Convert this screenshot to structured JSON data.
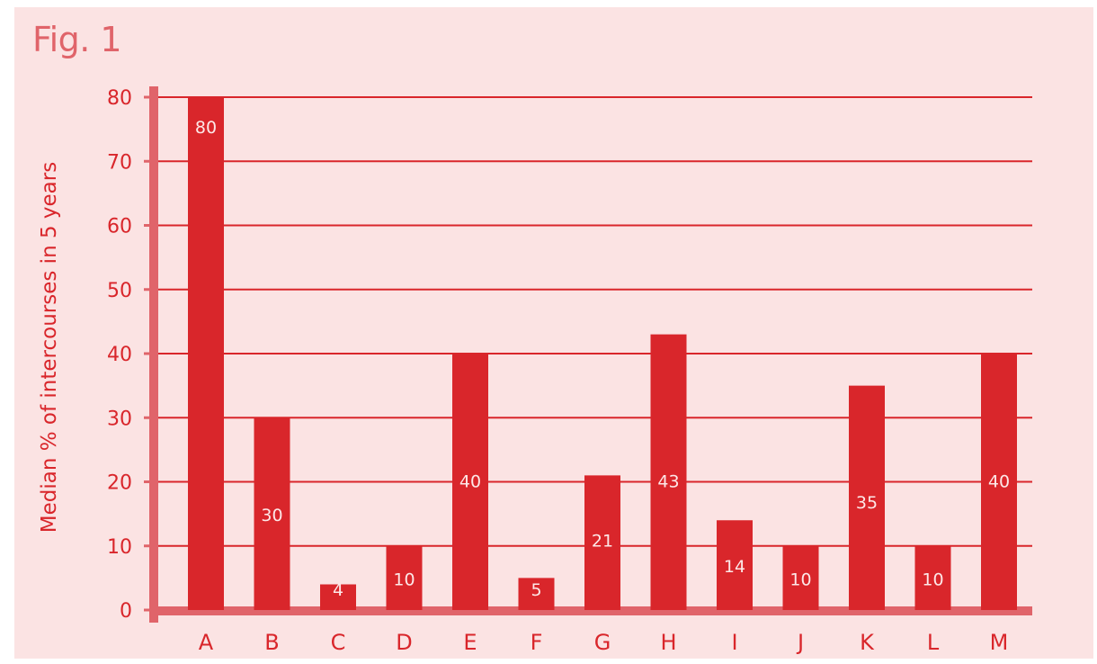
{
  "figure": {
    "title": "Fig. 1"
  },
  "chart_data": {
    "type": "bar",
    "title": "Fig. 1",
    "xlabel": "",
    "ylabel": "Median % of intercourses in 5 years",
    "ylim": [
      0,
      80
    ],
    "yticks": [
      0,
      10,
      20,
      30,
      40,
      50,
      60,
      70,
      80
    ],
    "grid": true,
    "categories": [
      "A",
      "B",
      "C",
      "D",
      "E",
      "F",
      "G",
      "H",
      "I",
      "J",
      "K",
      "L",
      "M"
    ],
    "values": [
      80,
      30,
      4,
      10,
      40,
      5,
      21,
      43,
      14,
      10,
      35,
      10,
      40
    ],
    "data_labels": [
      "80",
      "30",
      "4",
      "10",
      "40",
      "5",
      "21",
      "43",
      "14",
      "10",
      "35",
      "10",
      "40"
    ],
    "colors": {
      "bar": "#d9262b",
      "grid": "#d9262b",
      "axis": "#e0646a",
      "text": "#d9262b",
      "data_label": "#fde8e8",
      "background": "#fbe3e3"
    }
  }
}
